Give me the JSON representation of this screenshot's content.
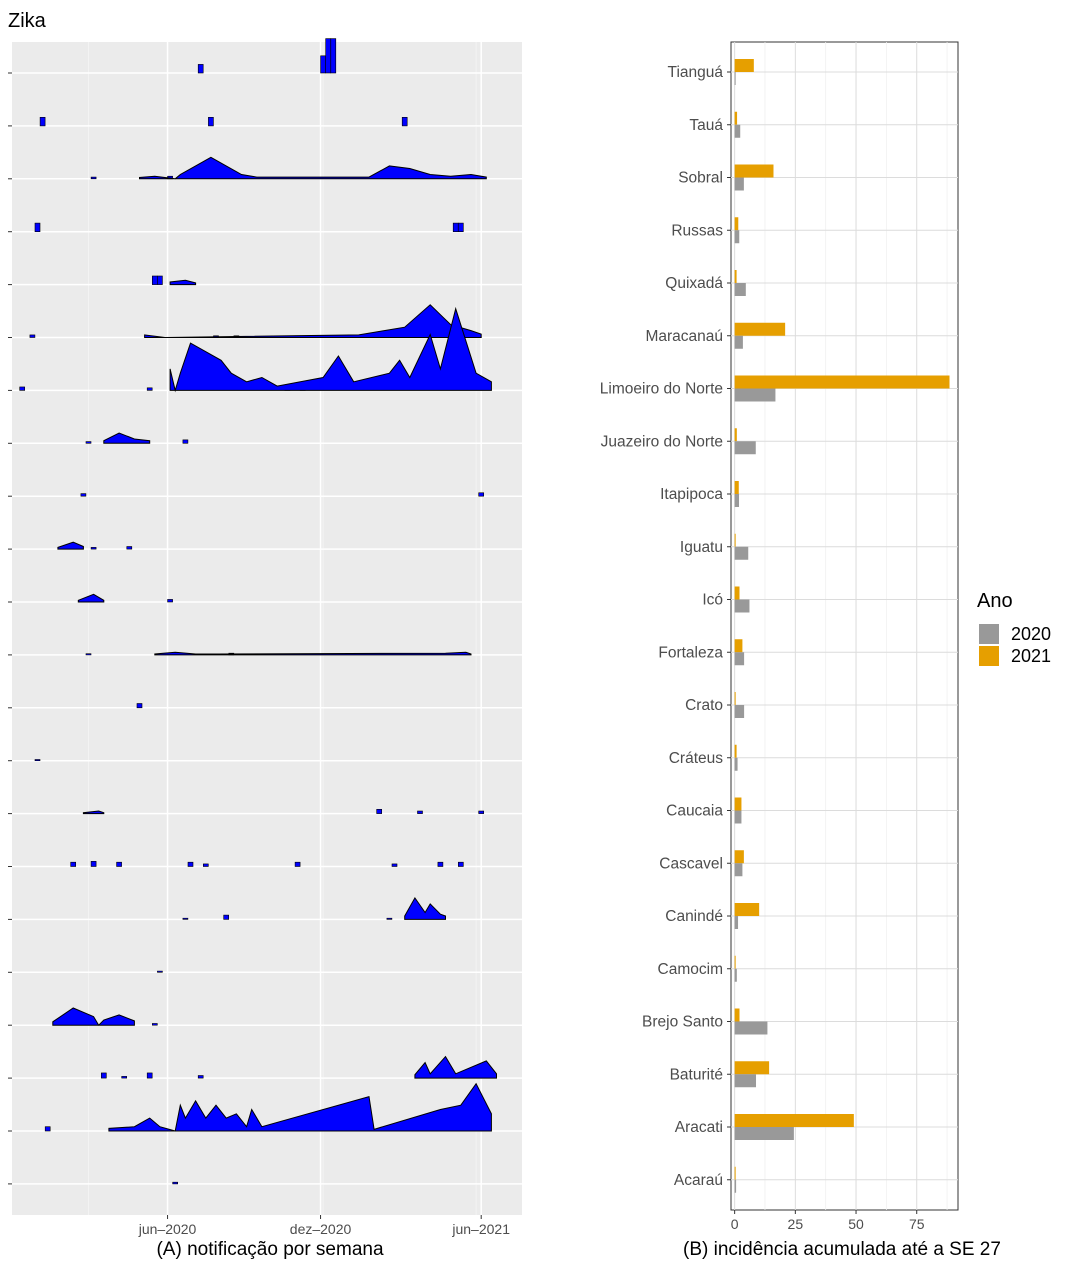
{
  "title": "Zika",
  "chart_data": [
    {
      "type": "area",
      "caption": "(A) notificação por semana",
      "x_ticks": [
        "jun–2020",
        "dez–2020",
        "jun–2021"
      ],
      "fill_color": "#0000ff",
      "outline_color": "#000000",
      "rows": [
        {
          "area": [],
          "bars": [
            [
              0.62,
              4
            ],
            [
              0.63,
              4
            ],
            [
              0.37,
              1
            ],
            [
              0.61,
              2
            ]
          ]
        },
        {
          "area": [],
          "bars": [
            [
              0.06,
              1
            ],
            [
              0.39,
              1
            ],
            [
              0.77,
              1
            ]
          ]
        },
        {
          "area": [
            [
              0.25,
              0.15
            ],
            [
              0.28,
              0.3
            ],
            [
              0.32,
              0.0
            ],
            [
              0.33,
              0.5
            ],
            [
              0.36,
              1.5
            ],
            [
              0.39,
              2.5
            ],
            [
              0.42,
              1.5
            ],
            [
              0.45,
              0.5
            ],
            [
              0.48,
              0.2
            ],
            [
              0.7,
              0.2
            ],
            [
              0.74,
              1.5
            ],
            [
              0.78,
              1.2
            ],
            [
              0.82,
              0.5
            ],
            [
              0.86,
              0.3
            ],
            [
              0.9,
              0.5
            ],
            [
              0.93,
              0.2
            ]
          ],
          "bars": [
            [
              0.16,
              0.2
            ],
            [
              0.31,
              0.3
            ]
          ]
        },
        {
          "area": [],
          "bars": [
            [
              0.05,
              1
            ],
            [
              0.87,
              1
            ],
            [
              0.88,
              1
            ]
          ]
        },
        {
          "area": [
            [
              0.31,
              0.3
            ],
            [
              0.34,
              0.5
            ],
            [
              0.36,
              0.2
            ]
          ],
          "bars": [
            [
              0.28,
              1
            ],
            [
              0.29,
              1
            ]
          ]
        },
        {
          "area": [
            [
              0.26,
              0.3
            ],
            [
              0.3,
              0.0
            ],
            [
              0.68,
              0.3
            ],
            [
              0.73,
              0.8
            ],
            [
              0.77,
              1.2
            ],
            [
              0.82,
              3.8
            ],
            [
              0.86,
              1.5
            ],
            [
              0.9,
              0.8
            ],
            [
              0.92,
              0.4
            ]
          ],
          "bars": [
            [
              0.04,
              0.3
            ],
            [
              0.4,
              0.2
            ],
            [
              0.44,
              0.2
            ],
            [
              0.56,
              0.2
            ]
          ]
        },
        {
          "area": [
            [
              0.31,
              2.5
            ],
            [
              0.32,
              0.0
            ],
            [
              0.33,
              2.0
            ],
            [
              0.35,
              5.5
            ],
            [
              0.38,
              4.5
            ],
            [
              0.41,
              3.5
            ],
            [
              0.43,
              2.0
            ],
            [
              0.46,
              1.0
            ],
            [
              0.49,
              1.5
            ],
            [
              0.52,
              0.5
            ],
            [
              0.61,
              1.5
            ],
            [
              0.64,
              4.0
            ],
            [
              0.67,
              1.0
            ],
            [
              0.74,
              2.0
            ],
            [
              0.76,
              3.5
            ],
            [
              0.78,
              1.5
            ],
            [
              0.8,
              4.0
            ],
            [
              0.82,
              6.5
            ],
            [
              0.84,
              2.5
            ],
            [
              0.87,
              9.5
            ],
            [
              0.91,
              2.0
            ],
            [
              0.94,
              1.0
            ]
          ],
          "bars": [
            [
              0.02,
              0.4
            ],
            [
              0.27,
              0.3
            ],
            [
              0.54,
              0.4
            ],
            [
              0.57,
              0.4
            ]
          ]
        },
        {
          "area": [
            [
              0.18,
              0.3
            ],
            [
              0.21,
              1.2
            ],
            [
              0.24,
              0.5
            ],
            [
              0.27,
              0.3
            ]
          ],
          "bars": [
            [
              0.15,
              0.2
            ],
            [
              0.34,
              0.4
            ]
          ]
        },
        {
          "area": [],
          "bars": [
            [
              0.92,
              0.4
            ],
            [
              0.14,
              0.3
            ]
          ]
        },
        {
          "area": [
            [
              0.09,
              0.2
            ],
            [
              0.12,
              0.8
            ],
            [
              0.14,
              0.3
            ]
          ],
          "bars": [
            [
              0.16,
              0.2
            ],
            [
              0.23,
              0.3
            ]
          ]
        },
        {
          "area": [
            [
              0.13,
              0.2
            ],
            [
              0.16,
              0.9
            ],
            [
              0.18,
              0.2
            ]
          ],
          "bars": [
            [
              0.31,
              0.3
            ]
          ]
        },
        {
          "area": [
            [
              0.28,
              0.1
            ],
            [
              0.32,
              0.3
            ],
            [
              0.36,
              0.1
            ],
            [
              0.4,
              0.1
            ],
            [
              0.85,
              0.2
            ],
            [
              0.89,
              0.3
            ],
            [
              0.9,
              0.1
            ]
          ],
          "bars": [
            [
              0.15,
              0.1
            ],
            [
              0.43,
              0.2
            ]
          ]
        },
        {
          "area": [],
          "bars": [
            [
              0.25,
              0.5
            ]
          ]
        },
        {
          "area": [],
          "bars": [
            [
              0.05,
              0.1
            ]
          ]
        },
        {
          "area": [
            [
              0.14,
              0.1
            ],
            [
              0.17,
              0.3
            ],
            [
              0.18,
              0.1
            ]
          ],
          "bars": [
            [
              0.72,
              0.5
            ],
            [
              0.8,
              0.3
            ],
            [
              0.92,
              0.3
            ]
          ]
        },
        {
          "area": [],
          "bars": [
            [
              0.12,
              0.5
            ],
            [
              0.16,
              0.6
            ],
            [
              0.21,
              0.5
            ],
            [
              0.35,
              0.5
            ],
            [
              0.38,
              0.3
            ],
            [
              0.56,
              0.5
            ],
            [
              0.75,
              0.3
            ],
            [
              0.84,
              0.5
            ],
            [
              0.88,
              0.5
            ]
          ]
        },
        {
          "area": [
            [
              0.77,
              0.4
            ],
            [
              0.79,
              2.5
            ],
            [
              0.81,
              0.8
            ],
            [
              0.82,
              1.8
            ],
            [
              0.84,
              0.6
            ],
            [
              0.85,
              0.4
            ]
          ],
          "bars": [
            [
              0.42,
              0.5
            ],
            [
              0.34,
              0.1
            ],
            [
              0.74,
              0.1
            ]
          ]
        },
        {
          "area": [],
          "bars": [
            [
              0.29,
              0.1
            ]
          ]
        },
        {
          "area": [
            [
              0.08,
              0.4
            ],
            [
              0.12,
              2.0
            ],
            [
              0.16,
              1.0
            ],
            [
              0.17,
              0.0
            ],
            [
              0.18,
              0.6
            ],
            [
              0.21,
              1.2
            ],
            [
              0.24,
              0.5
            ]
          ],
          "bars": [
            [
              0.28,
              0.2
            ]
          ]
        },
        {
          "area": [
            [
              0.79,
              0.4
            ],
            [
              0.81,
              1.8
            ],
            [
              0.82,
              0.5
            ],
            [
              0.85,
              2.5
            ],
            [
              0.87,
              0.5
            ],
            [
              0.93,
              2.0
            ],
            [
              0.95,
              0.5
            ]
          ],
          "bars": [
            [
              0.18,
              0.6
            ],
            [
              0.27,
              0.6
            ],
            [
              0.37,
              0.3
            ],
            [
              0.22,
              0.2
            ]
          ]
        },
        {
          "area": [
            [
              0.19,
              0.3
            ],
            [
              0.24,
              0.5
            ],
            [
              0.27,
              1.5
            ],
            [
              0.29,
              0.5
            ],
            [
              0.32,
              0.0
            ],
            [
              0.33,
              3.0
            ],
            [
              0.34,
              1.5
            ],
            [
              0.36,
              3.5
            ],
            [
              0.38,
              1.5
            ],
            [
              0.4,
              3.0
            ],
            [
              0.42,
              1.5
            ],
            [
              0.44,
              2.0
            ],
            [
              0.46,
              0.5
            ],
            [
              0.47,
              2.5
            ],
            [
              0.49,
              0.5
            ],
            [
              0.7,
              4.0
            ],
            [
              0.71,
              0.2
            ],
            [
              0.84,
              2.5
            ],
            [
              0.88,
              3.0
            ],
            [
              0.91,
              5.5
            ],
            [
              0.94,
              2.0
            ]
          ],
          "bars": [
            [
              0.07,
              0.5
            ],
            [
              0.49,
              0.5
            ],
            [
              0.52,
              0.8
            ],
            [
              0.67,
              0.5
            ],
            [
              0.74,
              0.5
            ],
            [
              0.8,
              0.5
            ],
            [
              0.57,
              0.2
            ]
          ]
        },
        {
          "area": [],
          "bars": [
            [
              0.32,
              0.2
            ]
          ]
        }
      ]
    },
    {
      "type": "bar",
      "orientation": "horizontal",
      "caption": "(B) incidência acumulada até a SE 27",
      "categories": [
        "Tianguá",
        "Tauá",
        "Sobral",
        "Russas",
        "Quixadá",
        "Maracanaú",
        "Limoeiro do Norte",
        "Juazeiro do Norte",
        "Itapipoca",
        "Iguatu",
        "Icó",
        "Fortaleza",
        "Crato",
        "Cráteus",
        "Caucaia",
        "Cascavel",
        "Canindé",
        "Camocim",
        "Brejo Santo",
        "Baturité",
        "Aracati",
        "Acaraú"
      ],
      "series": [
        {
          "name": "2020",
          "color": "#999999",
          "values": [
            0.4,
            2.3,
            3.8,
            1.9,
            4.6,
            3.4,
            16.8,
            8.7,
            1.8,
            5.6,
            6.1,
            3.9,
            3.9,
            1.2,
            2.8,
            3.2,
            1.4,
            0.9,
            13.5,
            8.8,
            24.4,
            0.6
          ]
        },
        {
          "name": "2021",
          "color": "#E69F00",
          "values": [
            7.9,
            1.0,
            16.0,
            1.5,
            0.8,
            20.8,
            88.5,
            0.9,
            1.7,
            0.4,
            2.0,
            3.2,
            0.4,
            0.8,
            2.8,
            3.8,
            10.1,
            0.2,
            2.0,
            14.2,
            49.1,
            0.3
          ]
        }
      ],
      "x_ticks": [
        "0",
        "25",
        "50",
        "75"
      ],
      "xlim": [
        -1.5,
        92
      ],
      "legend_title": "Ano",
      "legend_position": "right"
    }
  ]
}
